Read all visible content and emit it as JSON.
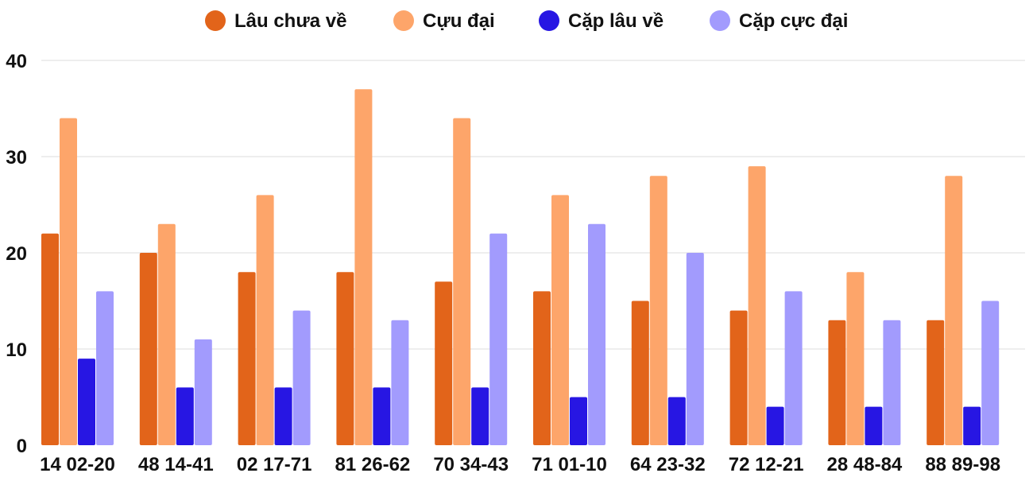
{
  "chart_data": {
    "type": "bar",
    "title": "",
    "xlabel": "",
    "ylabel": "",
    "ylim": [
      0,
      40
    ],
    "yticks": [
      0,
      10,
      20,
      30,
      40
    ],
    "grid": true,
    "legend_position": "top-center",
    "categories": [
      "14 02-20",
      "48 14-41",
      "02 17-71",
      "81 26-62",
      "70 34-43",
      "71 01-10",
      "64 23-32",
      "72 12-21",
      "28 48-84",
      "88 89-98"
    ],
    "series": [
      {
        "name": "Lâu chưa về",
        "color": "#E2641A",
        "values": [
          22,
          20,
          18,
          18,
          17,
          16,
          15,
          14,
          13,
          13
        ]
      },
      {
        "name": "Cựu đại",
        "color": "#FDA56A",
        "values": [
          34,
          23,
          26,
          37,
          34,
          26,
          28,
          29,
          18,
          28
        ]
      },
      {
        "name": "Cặp lâu về",
        "color": "#2716E3",
        "values": [
          9,
          6,
          6,
          6,
          6,
          5,
          5,
          4,
          4,
          4
        ]
      },
      {
        "name": "Cặp cực đại",
        "color": "#A29BFD",
        "values": [
          16,
          11,
          14,
          13,
          22,
          23,
          20,
          16,
          13,
          15
        ]
      }
    ]
  }
}
